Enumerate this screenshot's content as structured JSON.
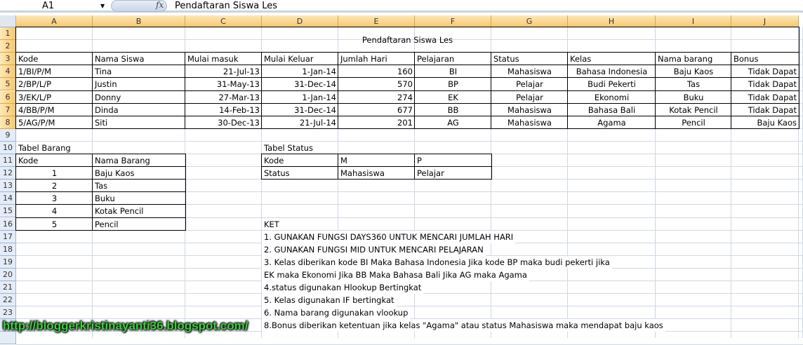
{
  "formula_bar": {
    "name_box": "A1",
    "fx_icon": "fx",
    "formula": "Pendaftaran Siswa Les"
  },
  "columns": [
    "A",
    "B",
    "C",
    "D",
    "E",
    "F",
    "G",
    "H",
    "I",
    "J"
  ],
  "title": "Pendaftaran Siswa Les",
  "main_table": {
    "headers": [
      "Kode",
      "Nama Siswa",
      "Mulai masuk",
      "Mulai Keluar",
      "Jumlah Hari",
      "Pelajaran",
      "Status",
      "Kelas",
      "Nama barang",
      "Bonus"
    ],
    "rows": [
      [
        "1/BI/P/M",
        "Tina",
        "21-Jul-13",
        "1-Jan-14",
        "160",
        "BI",
        "Mahasiswa",
        "Bahasa Indonesia",
        "Baju Kaos",
        "Tidak Dapat"
      ],
      [
        "2/BP/L/P",
        "Justin",
        "31-May-13",
        "31-Dec-14",
        "570",
        "BP",
        "Pelajar",
        "Budi Pekerti",
        "Tas",
        "Tidak Dapat"
      ],
      [
        "3/EK/L/P",
        "Donny",
        "27-Mar-13",
        "1-Jan-14",
        "274",
        "EK",
        "Pelajar",
        "Ekonomi",
        "Buku",
        "Tidak Dapat"
      ],
      [
        "4/BB/P/M",
        "Dinda",
        "14-Feb-13",
        "31-Dec-14",
        "677",
        "BB",
        "Mahasiswa",
        "Bahasa Bali",
        "Kotak Pencil",
        "Tidak Dapat"
      ],
      [
        "5/AG/P/M",
        "Siti",
        "30-Dec-13",
        "21-Jul-14",
        "201",
        "AG",
        "Mahasiswa",
        "Agama",
        "Pencil",
        "Baju Kaos"
      ]
    ]
  },
  "tabel_barang": {
    "title": "Tabel Barang",
    "headers": [
      "Kode",
      "Nama Barang"
    ],
    "rows": [
      [
        "1",
        "Baju Kaos"
      ],
      [
        "2",
        "Tas"
      ],
      [
        "3",
        "Buku"
      ],
      [
        "4",
        "Kotak Pencil"
      ],
      [
        "5",
        "Pencil"
      ]
    ]
  },
  "tabel_status": {
    "title": "Tabel Status",
    "rows": [
      [
        "Kode",
        "M",
        "P"
      ],
      [
        "Status",
        "Mahasiswa",
        "Pelajar"
      ]
    ]
  },
  "ket": {
    "title": "KET",
    "lines": [
      "1. GUNAKAN FUNGSI DAYS360 UNTUK MENCARI JUMLAH HARI",
      "2. GUNAKAN FUNGSI MID UNTUK MENCARI PELAJARAN",
      "3. Kelas diberikan kode BI Maka Bahasa Indonesia Jika kode BP maka budi pekerti jika",
      "EK maka Ekonomi Jika BB Maka Bahasa Bali Jika AG maka Agama",
      "4.status digunakan Hlookup Bertingkat",
      "5. Kelas digunakan IF bertingkat",
      "6. Nama barang digunakan vlookup",
      "8.Bonus diberikan ketentuan jika kelas \"Agama\" atau status Mahasiswa maka mendapat baju kaos"
    ]
  },
  "watermark": "http://bloggerkristinayanti36.blogspot.com/"
}
